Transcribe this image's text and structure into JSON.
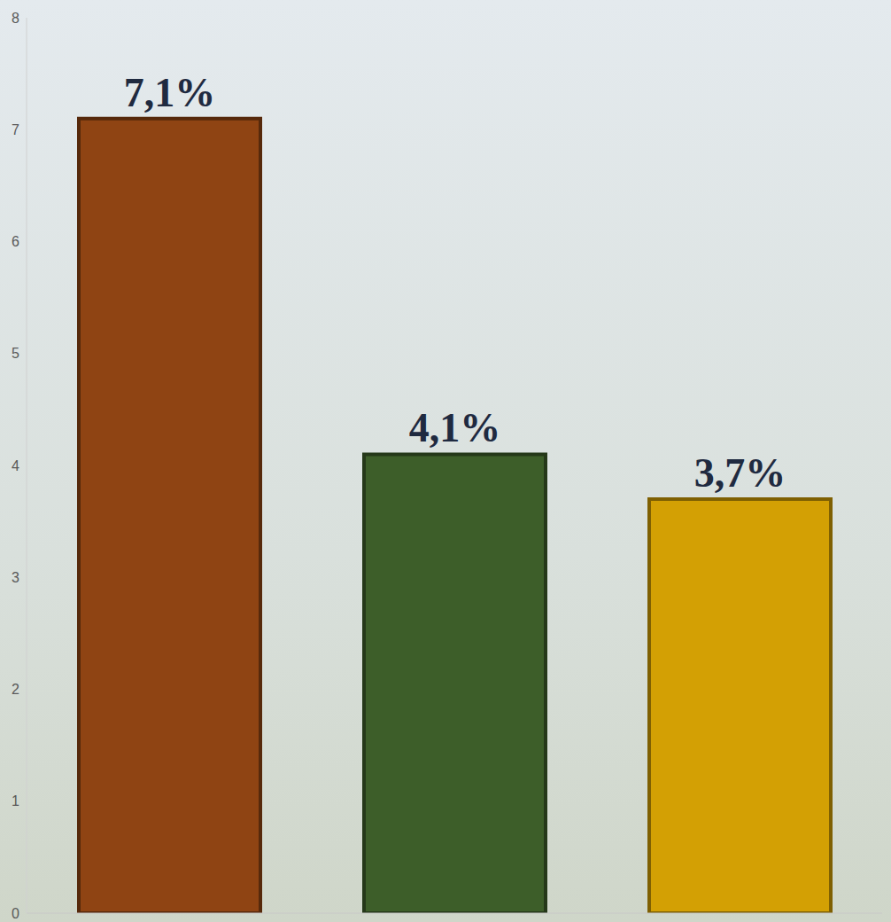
{
  "chart_data": {
    "type": "bar",
    "categories": [
      null,
      null,
      null
    ],
    "values": [
      7.1,
      4.1,
      3.7
    ],
    "value_labels": [
      "7,1%",
      "4,1%",
      "3,7%"
    ],
    "data_labels": true,
    "colors": [
      "#8f4413",
      "#3d5e29",
      "#d3a004"
    ],
    "ylim": [
      0,
      8
    ],
    "yticks": [
      0,
      1,
      2,
      3,
      4,
      5,
      6,
      7,
      8
    ],
    "grid": false,
    "tick_labels": "y"
  }
}
